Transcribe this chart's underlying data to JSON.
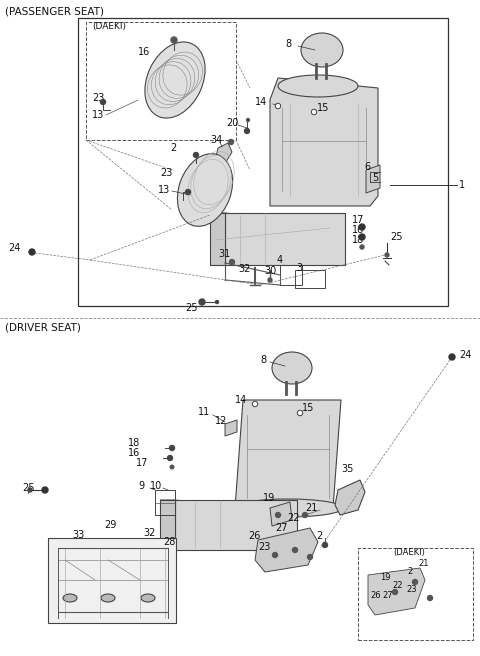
{
  "bg_color": "#ffffff",
  "line_color": "#222222",
  "text_color": "#111111",
  "fig_width": 4.8,
  "fig_height": 6.56,
  "section1_label": "(PASSENGER SEAT)",
  "section2_label": "(DRIVER SEAT)",
  "daeki_label": "(DAEKI)"
}
